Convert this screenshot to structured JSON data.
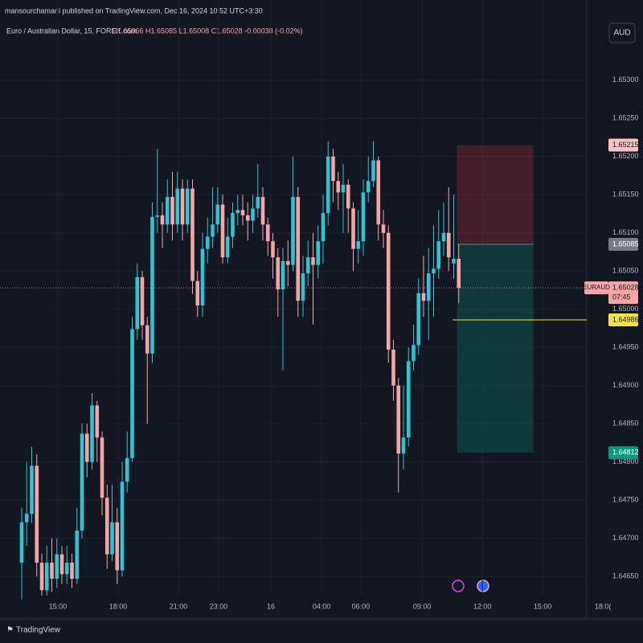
{
  "header": {
    "publisher": "mansourchamani published on TradingView.com, Dec 16, 2024 10:52 UTC+3:30",
    "symbol": "Euro / Australian Dollar, 15, FOREX.com",
    "ohlc": "O1.65066 H1.65085 L1.65008 C1.65028 -0.00038 (-0.02%)",
    "currency": "AUD"
  },
  "footer": {
    "brand": "TradingView"
  },
  "chart_data": {
    "type": "candlestick",
    "up_color": "#2ec4d6",
    "down_color": "#f6a5a5",
    "grid": true,
    "open": [
      1.64668,
      1.64721,
      1.64732,
      1.64795,
      1.64668,
      1.64632,
      1.64668,
      1.64647,
      1.64679,
      1.64653,
      1.64668,
      1.64647,
      1.6471,
      1.64837,
      1.648,
      1.64874,
      1.64832,
      1.64753,
      1.64679,
      1.64721,
      1.64658,
      1.64774,
      1.64805,
      1.64974,
      1.65042,
      1.64979,
      1.64942,
      1.65121,
      1.65123,
      1.65111,
      1.65147,
      1.65111,
      1.65158,
      1.65111,
      1.65158,
      1.65037,
      1.65005,
      1.65079,
      1.65095,
      1.65111,
      1.65137,
      1.65068,
      1.65095,
      1.65126,
      1.6513,
      1.65123,
      1.65116,
      1.65132,
      1.65147,
      1.65111,
      1.65089,
      1.65068,
      1.65026,
      1.65063,
      1.65058,
      1.65147,
      1.65011,
      1.65047,
      1.65068,
      1.65058,
      1.65089,
      1.65126,
      1.652,
      1.65168,
      1.65153,
      1.65163,
      1.65132,
      1.65079,
      1.65089,
      1.65153,
      1.65168,
      1.65195,
      1.65111,
      1.651,
      1.64947,
      1.649,
      1.64811,
      1.64832,
      1.64932,
      1.64953,
      1.65021,
      1.65011,
      1.65047,
      1.65053,
      1.65089,
      1.651,
      1.6506,
      1.65066
    ],
    "high": [
      1.6474,
      1.648,
      1.6482,
      1.6481,
      1.6468,
      1.6469,
      1.647,
      1.647,
      1.6469,
      1.6469,
      1.6468,
      1.6474,
      1.6485,
      1.6485,
      1.6489,
      1.6488,
      1.6484,
      1.6477,
      1.6477,
      1.6474,
      1.648,
      1.6484,
      1.6499,
      1.6506,
      1.6505,
      1.6499,
      1.6514,
      1.6521,
      1.6514,
      1.6517,
      1.6518,
      1.6518,
      1.6517,
      1.6517,
      1.6517,
      1.6505,
      1.651,
      1.6512,
      1.6516,
      1.6516,
      1.6515,
      1.6512,
      1.6514,
      1.6515,
      1.6515,
      1.6514,
      1.6515,
      1.6519,
      1.6516,
      1.6512,
      1.651,
      1.6508,
      1.6508,
      1.6509,
      1.652,
      1.6516,
      1.6507,
      1.6509,
      1.651,
      1.6511,
      1.6515,
      1.6522,
      1.6521,
      1.6518,
      1.6519,
      1.6517,
      1.6514,
      1.6513,
      1.6517,
      1.652,
      1.6522,
      1.652,
      1.6513,
      1.6511,
      1.6496,
      1.6491,
      1.649,
      1.6495,
      1.6498,
      1.6504,
      1.6507,
      1.6508,
      1.6511,
      1.6513,
      1.6514,
      1.6516,
      1.6515,
      1.65085
    ],
    "low": [
      1.6462,
      1.6469,
      1.6472,
      1.6465,
      1.64625,
      1.64625,
      1.6463,
      1.64635,
      1.6464,
      1.6464,
      1.64635,
      1.6464,
      1.647,
      1.6478,
      1.6479,
      1.648,
      1.6473,
      1.6466,
      1.6467,
      1.6464,
      1.6465,
      1.6476,
      1.648,
      1.6496,
      1.6496,
      1.6485,
      1.6493,
      1.651,
      1.6508,
      1.651,
      1.6509,
      1.651,
      1.6509,
      1.651,
      1.6502,
      1.6499,
      1.6499,
      1.6506,
      1.6508,
      1.651,
      1.6506,
      1.6506,
      1.6508,
      1.6511,
      1.6511,
      1.6509,
      1.651,
      1.6512,
      1.6509,
      1.6507,
      1.6504,
      1.6499,
      1.6492,
      1.6503,
      1.6505,
      1.6499,
      1.6499,
      1.6503,
      1.6498,
      1.6504,
      1.6506,
      1.6511,
      1.6514,
      1.6513,
      1.651,
      1.651,
      1.6505,
      1.6506,
      1.6507,
      1.6514,
      1.6516,
      1.6509,
      1.6508,
      1.6493,
      1.6488,
      1.6476,
      1.6479,
      1.6482,
      1.6492,
      1.6494,
      1.6499,
      1.6496,
      1.6499,
      1.6504,
      1.6507,
      1.6505,
      1.6504,
      1.65008
    ],
    "close": [
      1.64721,
      1.64732,
      1.64795,
      1.64668,
      1.64632,
      1.64668,
      1.64647,
      1.64679,
      1.64653,
      1.64668,
      1.64647,
      1.6471,
      1.64837,
      1.648,
      1.64874,
      1.64832,
      1.64753,
      1.64679,
      1.64721,
      1.64658,
      1.64774,
      1.64805,
      1.64974,
      1.65042,
      1.64979,
      1.64942,
      1.65121,
      1.65123,
      1.65111,
      1.65147,
      1.65111,
      1.65158,
      1.65111,
      1.65158,
      1.65037,
      1.65005,
      1.65079,
      1.65095,
      1.65111,
      1.65137,
      1.65068,
      1.65095,
      1.65126,
      1.6513,
      1.65123,
      1.65116,
      1.65132,
      1.65147,
      1.65111,
      1.65089,
      1.65068,
      1.65026,
      1.65063,
      1.65058,
      1.65147,
      1.65011,
      1.65047,
      1.65068,
      1.65058,
      1.65089,
      1.65126,
      1.652,
      1.65168,
      1.65153,
      1.65163,
      1.65132,
      1.65079,
      1.65089,
      1.65153,
      1.65168,
      1.65195,
      1.65111,
      1.651,
      1.64947,
      1.649,
      1.64811,
      1.64832,
      1.64932,
      1.64953,
      1.65021,
      1.65011,
      1.65047,
      1.65053,
      1.65089,
      1.651,
      1.65068,
      1.65066,
      1.65028
    ],
    "xlim": [
      -4.32,
      123.68
    ],
    "xticks": [
      {
        "value": 7.2,
        "label": "15:00"
      },
      {
        "value": 19.2,
        "label": "18:00"
      },
      {
        "value": 31.2,
        "label": "21:00"
      },
      {
        "value": 39.2,
        "label": "23:00"
      },
      {
        "value": 49.6,
        "label": "16"
      },
      {
        "value": 59.7,
        "label": "04:00"
      },
      {
        "value": 67.5,
        "label": "06:00"
      },
      {
        "value": 79.7,
        "label": "09:00"
      },
      {
        "value": 91.7,
        "label": "12:00"
      },
      {
        "value": 103.7,
        "label": "15:00"
      },
      {
        "value": 115.7,
        "label": "18:0("
      }
    ],
    "ylim": [
      1.64626,
      1.65405
    ],
    "yticks": [
      {
        "value": 1.653,
        "label": "1.65300"
      },
      {
        "value": 1.6525,
        "label": "1.65250"
      },
      {
        "value": 1.652,
        "label": "1.65200"
      },
      {
        "value": 1.6515,
        "label": "1.65150"
      },
      {
        "value": 1.651,
        "label": "1.65100"
      },
      {
        "value": 1.6505,
        "label": "1.65050"
      },
      {
        "value": 1.65,
        "label": "1.65000"
      },
      {
        "value": 1.6495,
        "label": "1.64950"
      },
      {
        "value": 1.649,
        "label": "1.64900"
      },
      {
        "value": 1.6485,
        "label": "1.64850"
      },
      {
        "value": 1.648,
        "label": "1.64800"
      },
      {
        "value": 1.6475,
        "label": "1.64750"
      },
      {
        "value": 1.647,
        "label": "1.64700"
      },
      {
        "value": 1.6465,
        "label": "1.64650"
      }
    ],
    "last_price": {
      "symbol": "EURAUD",
      "countdown": "07:45"
    },
    "position": {
      "target": 1.65215,
      "entry": 1.65085,
      "stop": 1.64812,
      "x_start": 86.7,
      "x_end": 101.9
    },
    "level": {
      "value": 1.64986,
      "x_start": 85.8,
      "color": "#f5e14a"
    }
  }
}
